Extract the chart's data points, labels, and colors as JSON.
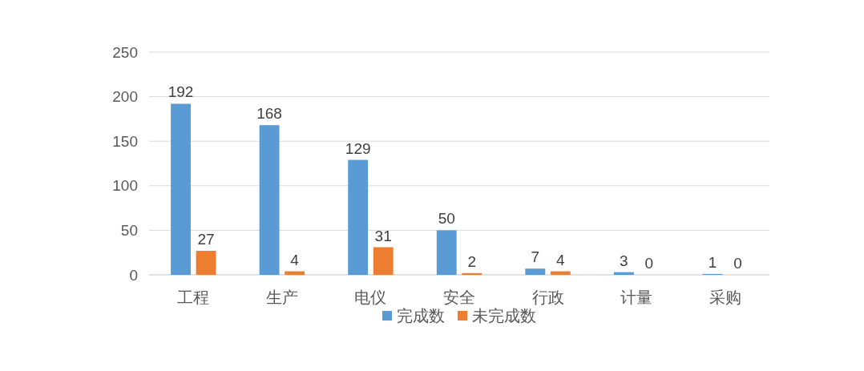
{
  "chart_data": {
    "type": "bar",
    "categories": [
      "工程",
      "生产",
      "电仪",
      "安全",
      "行政",
      "计量",
      "采购"
    ],
    "series": [
      {
        "name": "完成数",
        "color": "#5b9bd5",
        "values": [
          192,
          168,
          129,
          50,
          7,
          3,
          1
        ]
      },
      {
        "name": "未完成数",
        "color": "#ed7d31",
        "values": [
          27,
          4,
          31,
          2,
          4,
          0,
          0
        ]
      }
    ],
    "ylim": [
      0,
      250
    ],
    "yticks": [
      0,
      50,
      100,
      150,
      200,
      250
    ],
    "grid": "y",
    "legend": "bottom",
    "data_labels": true
  }
}
